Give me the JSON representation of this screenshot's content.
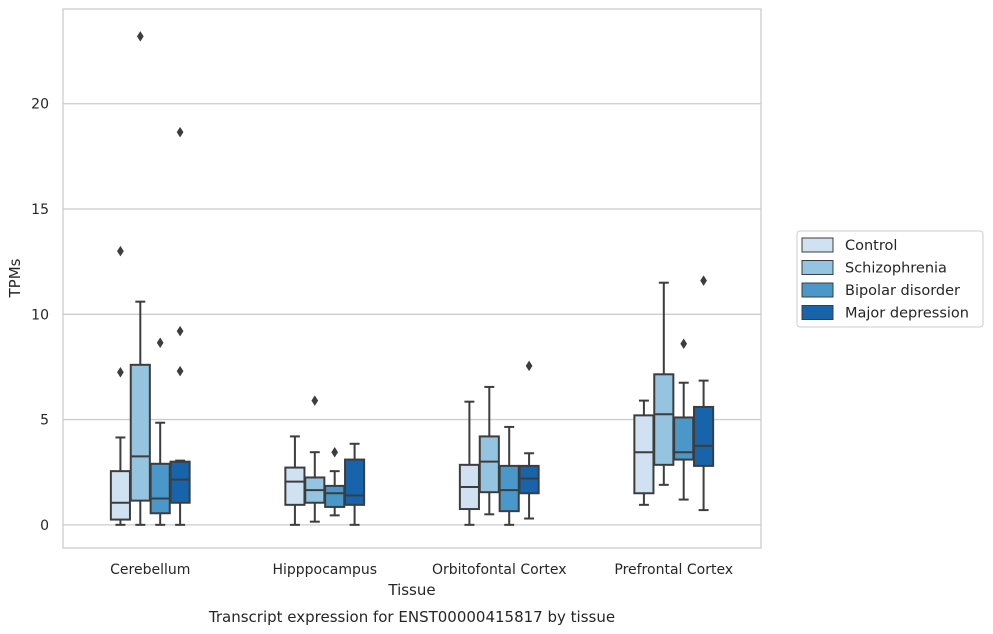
{
  "chart_data": {
    "type": "box",
    "title": "Transcript expression for ENST00000415817 by tissue",
    "xlabel": "Tissue",
    "ylabel": "TPMs",
    "ylim": [
      -1.1,
      24.5
    ],
    "yticks": [
      0,
      5,
      10,
      15,
      20
    ],
    "grid": "horizontal",
    "legend_position": "right",
    "categories": [
      "Cerebellum",
      "Hipppocampus",
      "Orbitofontal Cortex",
      "Prefrontal Cortex"
    ],
    "series": [
      {
        "name": "Control",
        "color": "#d0e1f2",
        "boxes": [
          {
            "whislo": 0.0,
            "q1": 0.25,
            "med": 1.05,
            "q3": 2.55,
            "whishi": 4.15,
            "fliers": [
              7.25,
              13.0
            ]
          },
          {
            "whislo": 0.0,
            "q1": 0.95,
            "med": 2.05,
            "q3": 2.72,
            "whishi": 4.2,
            "fliers": []
          },
          {
            "whislo": 0.0,
            "q1": 0.75,
            "med": 1.8,
            "q3": 2.85,
            "whishi": 5.85,
            "fliers": []
          },
          {
            "whislo": 0.95,
            "q1": 1.5,
            "med": 3.45,
            "q3": 5.2,
            "whishi": 5.9,
            "fliers": []
          }
        ]
      },
      {
        "name": "Schizophrenia",
        "color": "#94c4df",
        "boxes": [
          {
            "whislo": 0.0,
            "q1": 1.15,
            "med": 3.25,
            "q3": 7.6,
            "whishi": 10.6,
            "fliers": [
              23.2
            ]
          },
          {
            "whislo": 0.15,
            "q1": 1.05,
            "med": 1.65,
            "q3": 2.25,
            "whishi": 3.45,
            "fliers": [
              5.9
            ]
          },
          {
            "whislo": 0.5,
            "q1": 1.55,
            "med": 3.0,
            "q3": 4.2,
            "whishi": 6.55,
            "fliers": []
          },
          {
            "whislo": 1.9,
            "q1": 2.85,
            "med": 5.25,
            "q3": 7.15,
            "whishi": 11.5,
            "fliers": []
          }
        ]
      },
      {
        "name": "Bipolar disorder",
        "color": "#4a98c9",
        "boxes": [
          {
            "whislo": 0.0,
            "q1": 0.55,
            "med": 1.25,
            "q3": 2.9,
            "whishi": 4.85,
            "fliers": [
              8.65
            ]
          },
          {
            "whislo": 0.45,
            "q1": 0.85,
            "med": 1.5,
            "q3": 1.85,
            "whishi": 2.55,
            "fliers": [
              3.45
            ]
          },
          {
            "whislo": 0.0,
            "q1": 0.65,
            "med": 1.65,
            "q3": 2.8,
            "whishi": 4.65,
            "fliers": []
          },
          {
            "whislo": 1.2,
            "q1": 3.1,
            "med": 3.45,
            "q3": 5.1,
            "whishi": 6.75,
            "fliers": [
              8.6
            ]
          }
        ]
      },
      {
        "name": "Major depression",
        "color": "#1764ab",
        "boxes": [
          {
            "whislo": 0.0,
            "q1": 1.05,
            "med": 2.15,
            "q3": 3.0,
            "whishi": 3.05,
            "fliers": [
              7.3,
              9.2,
              18.65
            ]
          },
          {
            "whislo": 0.0,
            "q1": 0.95,
            "med": 1.4,
            "q3": 3.1,
            "whishi": 3.85,
            "fliers": []
          },
          {
            "whislo": 0.3,
            "q1": 1.5,
            "med": 2.2,
            "q3": 2.8,
            "whishi": 3.4,
            "fliers": [
              7.55
            ]
          },
          {
            "whislo": 0.7,
            "q1": 2.8,
            "med": 3.75,
            "q3": 5.6,
            "whishi": 6.85,
            "fliers": [
              11.6
            ]
          }
        ]
      }
    ]
  }
}
